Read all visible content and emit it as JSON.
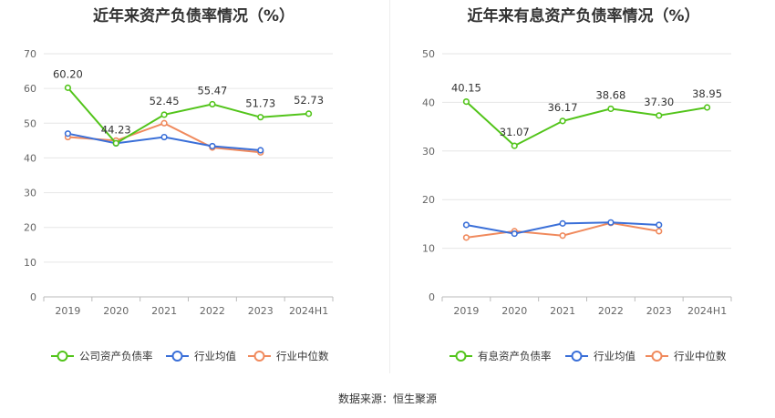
{
  "source_text": "数据来源：恒生聚源",
  "chart_data": [
    {
      "type": "line",
      "title": "近年来资产负债率情况（%）",
      "categories": [
        "2019",
        "2020",
        "2021",
        "2022",
        "2023",
        "2024H1"
      ],
      "ylim": [
        0,
        70
      ],
      "yticks": [
        0,
        10,
        20,
        30,
        40,
        50,
        60,
        70
      ],
      "grid": true,
      "legend_position": "bottom",
      "series": [
        {
          "name": "公司资产负债率",
          "color": "#52c41a",
          "values": [
            60.2,
            44.23,
            52.45,
            55.47,
            51.73,
            52.73
          ],
          "labels": [
            "60.20",
            "44.23",
            "52.45",
            "55.47",
            "51.73",
            "52.73"
          ]
        },
        {
          "name": "行业均值",
          "color": "#3a6fd8",
          "values": [
            47.0,
            44.2,
            46.0,
            43.4,
            42.2,
            null
          ]
        },
        {
          "name": "行业中位数",
          "color": "#f08a5d",
          "values": [
            46.0,
            45.0,
            50.0,
            43.0,
            41.6,
            null
          ]
        }
      ]
    },
    {
      "type": "line",
      "title": "近年来有息资产负债率情况（%）",
      "categories": [
        "2019",
        "2020",
        "2021",
        "2022",
        "2023",
        "2024H1"
      ],
      "ylim": [
        0,
        50
      ],
      "yticks": [
        0,
        10,
        20,
        30,
        40,
        50
      ],
      "grid": true,
      "legend_position": "bottom",
      "series": [
        {
          "name": "有息资产负债率",
          "color": "#52c41a",
          "values": [
            40.15,
            31.07,
            36.17,
            38.68,
            37.3,
            38.95
          ],
          "labels": [
            "40.15",
            "31.07",
            "36.17",
            "38.68",
            "37.30",
            "38.95"
          ]
        },
        {
          "name": "行业均值",
          "color": "#3a6fd8",
          "values": [
            14.8,
            13.0,
            15.1,
            15.3,
            14.8,
            null
          ]
        },
        {
          "name": "行业中位数",
          "color": "#f08a5d",
          "values": [
            12.2,
            13.5,
            12.6,
            15.2,
            13.5,
            null
          ]
        }
      ]
    }
  ]
}
